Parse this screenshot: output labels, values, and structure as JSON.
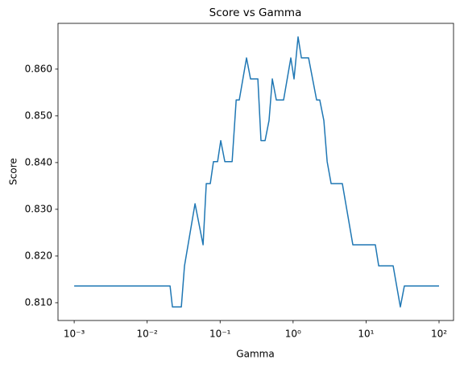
{
  "chart_data": {
    "type": "line",
    "title": "Score vs Gamma",
    "x_label": "Gamma",
    "y_label": "Score",
    "x_scale": "log",
    "x": [
      0.001,
      0.0206,
      0.0222,
      0.0294,
      0.0325,
      0.0453,
      0.0584,
      0.0646,
      0.0733,
      0.081,
      0.0923,
      0.102,
      0.116,
      0.146,
      0.166,
      0.183,
      0.23,
      0.261,
      0.329,
      0.363,
      0.413,
      0.468,
      0.519,
      0.589,
      0.741,
      0.931,
      1.03,
      1.17,
      1.3,
      1.63,
      2.1,
      2.32,
      2.64,
      2.93,
      3.32,
      4.73,
      6.59,
      13.4,
      14.9,
      23.5,
      29.5,
      33.5,
      100
    ],
    "series": [
      {
        "color": "#1f77b4",
        "values": [
          0.8136,
          0.8136,
          0.8091,
          0.8091,
          0.8179,
          0.8312,
          0.8224,
          0.8355,
          0.8355,
          0.8402,
          0.8402,
          0.8447,
          0.8402,
          0.8402,
          0.8534,
          0.8534,
          0.8624,
          0.8579,
          0.8579,
          0.8447,
          0.8447,
          0.849,
          0.8579,
          0.8534,
          0.8534,
          0.8624,
          0.8579,
          0.8669,
          0.8624,
          0.8624,
          0.8534,
          0.8534,
          0.849,
          0.8402,
          0.8355,
          0.8355,
          0.8224,
          0.8224,
          0.8179,
          0.8179,
          0.8091,
          0.8136,
          0.8136
        ]
      }
    ],
    "xlim": [
      0.0006,
      158
    ],
    "ylim": [
      0.8062,
      0.8698
    ],
    "xticks": [
      {
        "value": 0.001,
        "label": "10⁻³"
      },
      {
        "value": 0.01,
        "label": "10⁻²"
      },
      {
        "value": 0.1,
        "label": "10⁻¹"
      },
      {
        "value": 1,
        "label": "10⁰"
      },
      {
        "value": 10,
        "label": "10¹"
      },
      {
        "value": 100,
        "label": "10²"
      }
    ],
    "yticks": [
      {
        "value": 0.81,
        "label": "0.810"
      },
      {
        "value": 0.82,
        "label": "0.820"
      },
      {
        "value": 0.83,
        "label": "0.830"
      },
      {
        "value": 0.84,
        "label": "0.840"
      },
      {
        "value": 0.85,
        "label": "0.850"
      },
      {
        "value": 0.86,
        "label": "0.860"
      }
    ],
    "grid": false
  }
}
